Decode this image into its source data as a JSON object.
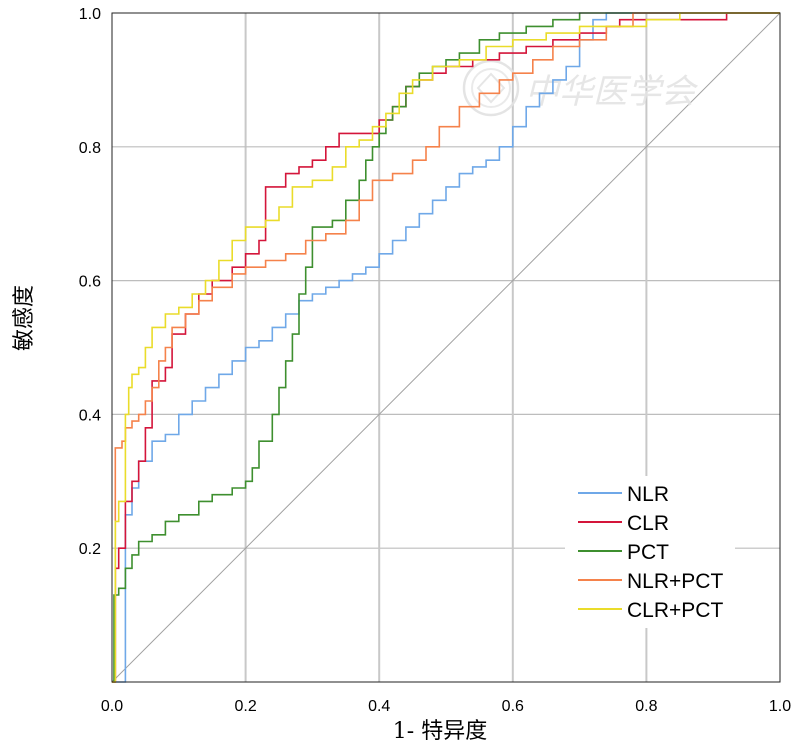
{
  "chart_data": {
    "type": "line",
    "xlabel": "1- 特异度",
    "ylabel": "敏感度",
    "xlim": [
      0,
      1
    ],
    "ylim": [
      0,
      1
    ],
    "xticks": [
      "0.0",
      "0.2",
      "0.4",
      "0.6",
      "0.8",
      "1.0"
    ],
    "yticks": [
      "0.2",
      "0.4",
      "0.6",
      "0.8",
      "1.0"
    ],
    "grid": true,
    "legend_position": "bottom-right",
    "watermark": "中华医学会",
    "series": [
      {
        "name": "NLR",
        "color": "#6fa8e8",
        "points": [
          [
            0,
            0
          ],
          [
            0.02,
            0.1
          ],
          [
            0.02,
            0.25
          ],
          [
            0.03,
            0.29
          ],
          [
            0.04,
            0.33
          ],
          [
            0.06,
            0.36
          ],
          [
            0.08,
            0.37
          ],
          [
            0.1,
            0.4
          ],
          [
            0.12,
            0.42
          ],
          [
            0.14,
            0.44
          ],
          [
            0.16,
            0.46
          ],
          [
            0.18,
            0.48
          ],
          [
            0.2,
            0.5
          ],
          [
            0.22,
            0.51
          ],
          [
            0.24,
            0.53
          ],
          [
            0.26,
            0.55
          ],
          [
            0.28,
            0.57
          ],
          [
            0.3,
            0.58
          ],
          [
            0.32,
            0.59
          ],
          [
            0.34,
            0.6
          ],
          [
            0.36,
            0.61
          ],
          [
            0.38,
            0.62
          ],
          [
            0.4,
            0.64
          ],
          [
            0.42,
            0.66
          ],
          [
            0.44,
            0.68
          ],
          [
            0.46,
            0.7
          ],
          [
            0.48,
            0.72
          ],
          [
            0.5,
            0.74
          ],
          [
            0.52,
            0.76
          ],
          [
            0.54,
            0.77
          ],
          [
            0.56,
            0.78
          ],
          [
            0.58,
            0.8
          ],
          [
            0.6,
            0.83
          ],
          [
            0.62,
            0.86
          ],
          [
            0.64,
            0.88
          ],
          [
            0.66,
            0.9
          ],
          [
            0.68,
            0.92
          ],
          [
            0.7,
            0.96
          ],
          [
            0.72,
            0.99
          ],
          [
            0.74,
            1.0
          ],
          [
            1.0,
            1.0
          ]
        ]
      },
      {
        "name": "CLR",
        "color": "#d4153a",
        "points": [
          [
            0,
            0
          ],
          [
            0.005,
            0.17
          ],
          [
            0.01,
            0.2
          ],
          [
            0.02,
            0.27
          ],
          [
            0.03,
            0.3
          ],
          [
            0.04,
            0.33
          ],
          [
            0.05,
            0.38
          ],
          [
            0.06,
            0.45
          ],
          [
            0.08,
            0.47
          ],
          [
            0.09,
            0.52
          ],
          [
            0.11,
            0.55
          ],
          [
            0.13,
            0.58
          ],
          [
            0.15,
            0.6
          ],
          [
            0.18,
            0.62
          ],
          [
            0.2,
            0.64
          ],
          [
            0.22,
            0.66
          ],
          [
            0.23,
            0.74
          ],
          [
            0.26,
            0.76
          ],
          [
            0.28,
            0.77
          ],
          [
            0.3,
            0.78
          ],
          [
            0.32,
            0.8
          ],
          [
            0.34,
            0.82
          ],
          [
            0.38,
            0.82
          ],
          [
            0.4,
            0.84
          ],
          [
            0.42,
            0.86
          ],
          [
            0.44,
            0.89
          ],
          [
            0.46,
            0.9
          ],
          [
            0.48,
            0.91
          ],
          [
            0.5,
            0.92
          ],
          [
            0.54,
            0.93
          ],
          [
            0.58,
            0.94
          ],
          [
            0.62,
            0.95
          ],
          [
            0.66,
            0.96
          ],
          [
            0.7,
            0.97
          ],
          [
            0.74,
            0.98
          ],
          [
            0.76,
            0.99
          ],
          [
            0.9,
            0.99
          ],
          [
            0.92,
            1.0
          ],
          [
            1.0,
            1.0
          ]
        ]
      },
      {
        "name": "PCT",
        "color": "#3e8f2f",
        "points": [
          [
            0,
            0
          ],
          [
            0.003,
            0.13
          ],
          [
            0.01,
            0.14
          ],
          [
            0.02,
            0.17
          ],
          [
            0.03,
            0.19
          ],
          [
            0.04,
            0.21
          ],
          [
            0.06,
            0.22
          ],
          [
            0.08,
            0.24
          ],
          [
            0.1,
            0.25
          ],
          [
            0.13,
            0.27
          ],
          [
            0.15,
            0.28
          ],
          [
            0.18,
            0.29
          ],
          [
            0.2,
            0.3
          ],
          [
            0.21,
            0.32
          ],
          [
            0.22,
            0.36
          ],
          [
            0.24,
            0.4
          ],
          [
            0.25,
            0.44
          ],
          [
            0.26,
            0.48
          ],
          [
            0.27,
            0.52
          ],
          [
            0.28,
            0.58
          ],
          [
            0.29,
            0.62
          ],
          [
            0.3,
            0.68
          ],
          [
            0.33,
            0.69
          ],
          [
            0.35,
            0.72
          ],
          [
            0.37,
            0.75
          ],
          [
            0.38,
            0.78
          ],
          [
            0.39,
            0.8
          ],
          [
            0.4,
            0.82
          ],
          [
            0.41,
            0.84
          ],
          [
            0.42,
            0.86
          ],
          [
            0.44,
            0.89
          ],
          [
            0.46,
            0.91
          ],
          [
            0.48,
            0.92
          ],
          [
            0.5,
            0.93
          ],
          [
            0.52,
            0.94
          ],
          [
            0.55,
            0.96
          ],
          [
            0.58,
            0.97
          ],
          [
            0.62,
            0.98
          ],
          [
            0.66,
            0.99
          ],
          [
            0.7,
            1.0
          ],
          [
            1.0,
            1.0
          ]
        ]
      },
      {
        "name": "NLR+PCT",
        "color": "#f5824b",
        "points": [
          [
            0,
            0
          ],
          [
            0.005,
            0.35
          ],
          [
            0.015,
            0.36
          ],
          [
            0.02,
            0.38
          ],
          [
            0.03,
            0.39
          ],
          [
            0.04,
            0.4
          ],
          [
            0.05,
            0.42
          ],
          [
            0.06,
            0.44
          ],
          [
            0.07,
            0.48
          ],
          [
            0.08,
            0.5
          ],
          [
            0.09,
            0.53
          ],
          [
            0.11,
            0.55
          ],
          [
            0.13,
            0.57
          ],
          [
            0.15,
            0.59
          ],
          [
            0.18,
            0.61
          ],
          [
            0.2,
            0.62
          ],
          [
            0.23,
            0.63
          ],
          [
            0.26,
            0.64
          ],
          [
            0.29,
            0.66
          ],
          [
            0.32,
            0.67
          ],
          [
            0.35,
            0.69
          ],
          [
            0.37,
            0.72
          ],
          [
            0.39,
            0.75
          ],
          [
            0.42,
            0.76
          ],
          [
            0.45,
            0.78
          ],
          [
            0.47,
            0.8
          ],
          [
            0.49,
            0.83
          ],
          [
            0.52,
            0.86
          ],
          [
            0.55,
            0.88
          ],
          [
            0.58,
            0.9
          ],
          [
            0.6,
            0.91
          ],
          [
            0.63,
            0.93
          ],
          [
            0.66,
            0.95
          ],
          [
            0.7,
            0.96
          ],
          [
            0.74,
            0.98
          ],
          [
            0.78,
            1.0
          ],
          [
            1.0,
            1.0
          ]
        ]
      },
      {
        "name": "CLR+PCT",
        "color": "#eadc2a",
        "points": [
          [
            0,
            0
          ],
          [
            0.005,
            0.24
          ],
          [
            0.01,
            0.27
          ],
          [
            0.02,
            0.4
          ],
          [
            0.025,
            0.44
          ],
          [
            0.03,
            0.46
          ],
          [
            0.04,
            0.47
          ],
          [
            0.05,
            0.5
          ],
          [
            0.06,
            0.53
          ],
          [
            0.08,
            0.55
          ],
          [
            0.1,
            0.56
          ],
          [
            0.12,
            0.58
          ],
          [
            0.14,
            0.6
          ],
          [
            0.16,
            0.63
          ],
          [
            0.18,
            0.66
          ],
          [
            0.2,
            0.68
          ],
          [
            0.23,
            0.69
          ],
          [
            0.25,
            0.71
          ],
          [
            0.27,
            0.74
          ],
          [
            0.3,
            0.75
          ],
          [
            0.33,
            0.77
          ],
          [
            0.35,
            0.8
          ],
          [
            0.37,
            0.81
          ],
          [
            0.39,
            0.83
          ],
          [
            0.41,
            0.85
          ],
          [
            0.43,
            0.88
          ],
          [
            0.45,
            0.9
          ],
          [
            0.48,
            0.92
          ],
          [
            0.52,
            0.93
          ],
          [
            0.56,
            0.95
          ],
          [
            0.6,
            0.96
          ],
          [
            0.65,
            0.97
          ],
          [
            0.7,
            0.98
          ],
          [
            0.75,
            0.98
          ],
          [
            0.8,
            0.99
          ],
          [
            0.85,
            1.0
          ],
          [
            1.0,
            1.0
          ]
        ]
      }
    ]
  }
}
